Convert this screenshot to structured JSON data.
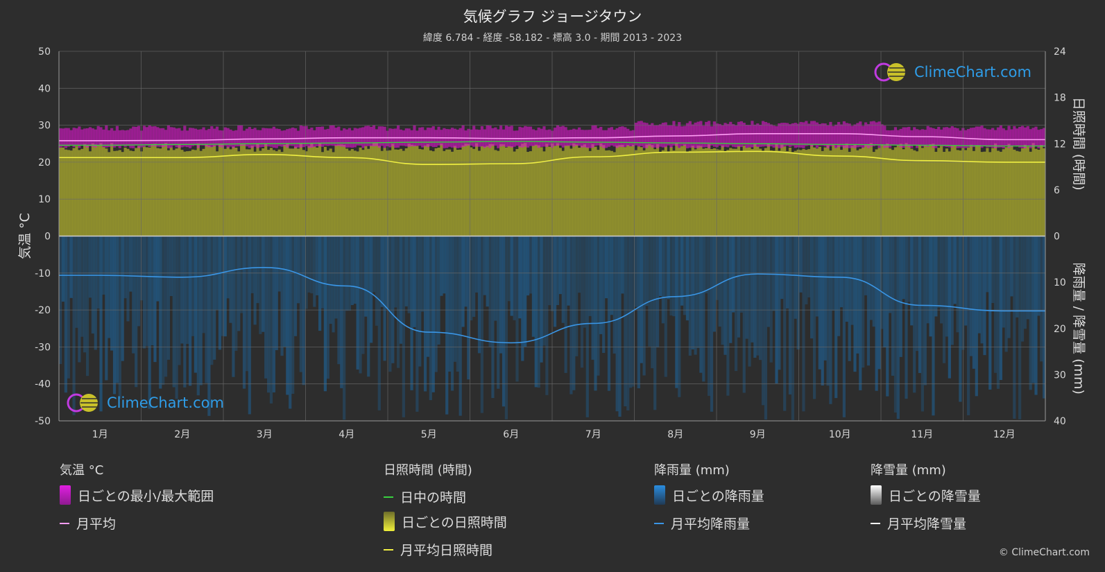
{
  "header": {
    "title": "気候グラフ ジョージタウン",
    "subtitle": "緯度 6.784 - 経度 -58.182 - 標高 3.0 - 期間 2013 - 2023"
  },
  "brand": {
    "text": "ClimeChart.com",
    "copyright": "© ClimeChart.com"
  },
  "chart_data": {
    "type": "area",
    "title": "気候グラフ ジョージタウン",
    "categories": [
      "1月",
      "2月",
      "3月",
      "4月",
      "5月",
      "6月",
      "7月",
      "8月",
      "9月",
      "10月",
      "11月",
      "12月"
    ],
    "axes": {
      "left": {
        "label": "気温 °C",
        "ticks": [
          50,
          40,
          30,
          20,
          10,
          0,
          -10,
          -20,
          -30,
          -40,
          -50
        ],
        "range": [
          -50,
          50
        ]
      },
      "right_top": {
        "label": "日照時間 (時間)",
        "ticks": [
          24,
          18,
          12,
          6,
          0
        ],
        "range": [
          0,
          24
        ]
      },
      "right_bottom": {
        "label": "降雨量 / 降雪量 (mm)",
        "ticks": [
          0,
          10,
          20,
          30,
          40
        ],
        "range": [
          0,
          40
        ]
      }
    },
    "grid": true,
    "series": [
      {
        "name": "月平均",
        "unit": "°C",
        "color": "#ff9cf5",
        "values": [
          25.8,
          25.9,
          26.3,
          26.6,
          26.6,
          26.4,
          26.6,
          27.1,
          27.7,
          27.7,
          26.9,
          26.1
        ]
      },
      {
        "name": "日中の時間",
        "unit": "時間",
        "color": "#39d13f",
        "values": [
          11.8,
          11.9,
          12.0,
          12.1,
          12.2,
          12.3,
          12.2,
          12.1,
          12.0,
          11.9,
          11.8,
          11.7
        ]
      },
      {
        "name": "月平均日照時間",
        "unit": "時間",
        "color": "#f0ef43",
        "values": [
          10.2,
          10.2,
          10.6,
          10.2,
          9.3,
          9.4,
          10.3,
          10.9,
          11.0,
          10.4,
          9.8,
          9.6
        ]
      },
      {
        "name": "月平均降雨量",
        "unit": "mm",
        "color": "#3a96e6",
        "values": [
          8.5,
          8.9,
          6.8,
          10.8,
          20.8,
          23.1,
          18.9,
          13.1,
          8.2,
          8.9,
          15.0,
          16.2
        ]
      }
    ],
    "daily_ranges": {
      "temp_min": 24.0,
      "temp_max": 28.5,
      "sunshine_max_hours": 11.5
    }
  },
  "legend": {
    "groups": [
      {
        "heading": "気温 °C",
        "items": [
          "日ごとの最小/最大範囲",
          "月平均"
        ]
      },
      {
        "heading": "日照時間 (時間)",
        "items": [
          "日中の時間",
          "日ごとの日照時間",
          "月平均日照時間"
        ]
      },
      {
        "heading": "降雨量 (mm)",
        "items": [
          "日ごとの降雨量",
          "月平均降雨量"
        ]
      },
      {
        "heading": "降雪量 (mm)",
        "items": [
          "日ごとの降雪量",
          "月平均降雪量"
        ]
      }
    ]
  },
  "colors": {
    "background": "#2d2d2d",
    "temp_range": "#d816c9",
    "sunshine_fill": "#aaaa2a",
    "rain_fill": "#1f5f91",
    "snow": "#ffffff"
  }
}
